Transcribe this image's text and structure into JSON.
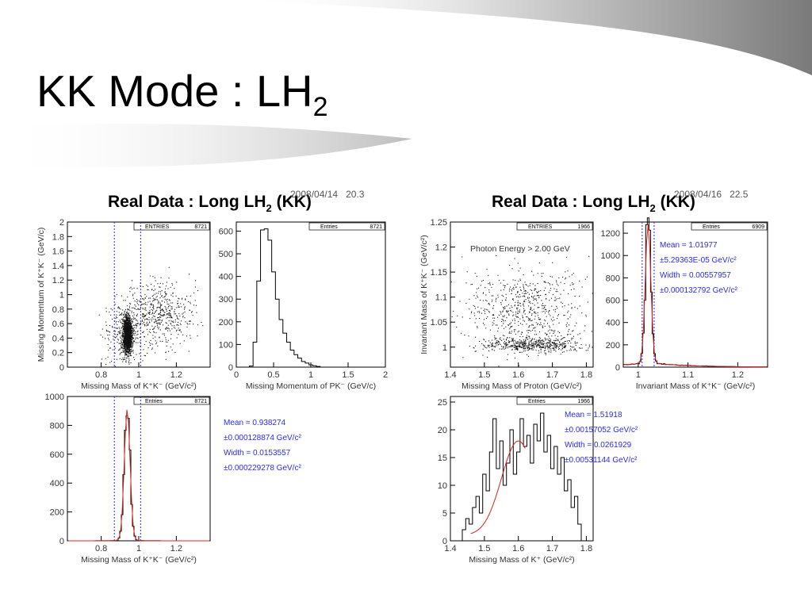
{
  "slide": {
    "title_main": "KK Mode : LH",
    "title_sub": "2"
  },
  "panels": [
    {
      "title_pre": "Real Data : Long LH",
      "title_sub": "2",
      "title_post": " (KK)",
      "stamp_date": "2008/04/14",
      "stamp_time": "20.3"
    },
    {
      "title_pre": "Real Data : Long LH",
      "title_sub": "2",
      "title_post": " (KK)",
      "stamp_date": "2008/04/16",
      "stamp_time": "22.5"
    }
  ],
  "colors": {
    "blue_line": "#2a2aff",
    "fit_red": "#e02020",
    "photon_red": "#e02020",
    "stat_blue": "#2a2aff"
  },
  "chart_data": [
    {
      "type": "scatter",
      "id": "p1",
      "xlabel": "Missing Mass of K⁺K⁻ (GeV/c²)",
      "ylabel": "Missing Momentum of K⁺K⁻ (GeV/c)",
      "xlim": [
        0.62,
        1.38
      ],
      "ylim": [
        0,
        2
      ],
      "xticks": [
        "0.8",
        "1",
        "1.2"
      ],
      "xtick_vals": [
        0.8,
        1.0,
        1.2
      ],
      "yticks": [
        "0",
        "0.2",
        "0.4",
        "0.6",
        "0.8",
        "1",
        "1.2",
        "1.4",
        "1.6",
        "1.8",
        "2"
      ],
      "ytick_vals": [
        0,
        0.2,
        0.4,
        0.6,
        0.8,
        1.0,
        1.2,
        1.4,
        1.6,
        1.8,
        2.0
      ],
      "box": {
        "label": "ENTRIES",
        "value": "8721"
      },
      "cut_lines_x": [
        0.87,
        1.01
      ],
      "clusters": [
        {
          "cx": 0.938,
          "cy": 0.45,
          "sx": 0.012,
          "sy": 0.12,
          "n": 1600
        },
        {
          "cx": 0.93,
          "cy": 0.5,
          "sx": 0.06,
          "sy": 0.2,
          "n": 300
        },
        {
          "cx": 1.12,
          "cy": 0.75,
          "sx": 0.09,
          "sy": 0.22,
          "n": 500
        }
      ]
    },
    {
      "type": "line",
      "id": "p2",
      "xlabel": "Missing Momentum of PK⁻ (GeV/c)",
      "xlim": [
        0,
        2
      ],
      "ylim": [
        0,
        640
      ],
      "xticks": [
        "0",
        "0.5",
        "1",
        "1.5",
        "2"
      ],
      "xtick_vals": [
        0,
        0.5,
        1,
        1.5,
        2
      ],
      "yticks": [
        "0",
        "100",
        "200",
        "300",
        "400",
        "500",
        "600"
      ],
      "ytick_vals": [
        0,
        100,
        200,
        300,
        400,
        500,
        600
      ],
      "box": {
        "label": "Entries",
        "value": "8721"
      },
      "x": [
        0.2,
        0.25,
        0.3,
        0.35,
        0.4,
        0.45,
        0.5,
        0.55,
        0.6,
        0.65,
        0.7,
        0.75,
        0.8,
        0.85,
        0.9,
        0.95,
        1.0,
        1.05,
        1.1
      ],
      "y": [
        5,
        110,
        380,
        605,
        610,
        560,
        420,
        300,
        210,
        150,
        110,
        75,
        55,
        40,
        25,
        18,
        10,
        6,
        3
      ]
    },
    {
      "type": "scatter",
      "id": "p3",
      "xlabel": "Missing Mass of Proton (GeV/c²)",
      "ylabel": "Invariant Mass of K⁺K⁻ (GeV/c²)",
      "xlim": [
        1.4,
        1.82
      ],
      "ylim": [
        0.96,
        1.25
      ],
      "xticks": [
        "1.4",
        "1.5",
        "1.6",
        "1.7",
        "1.8"
      ],
      "xtick_vals": [
        1.4,
        1.5,
        1.6,
        1.7,
        1.8
      ],
      "yticks": [
        "1",
        "1.05",
        "1.1",
        "1.15",
        "1.2",
        "1.25"
      ],
      "ytick_vals": [
        1.0,
        1.05,
        1.1,
        1.15,
        1.2,
        1.25
      ],
      "box": {
        "label": "ENTRIES",
        "value": "1966"
      },
      "annotation": "Photon Energy > 2.00 GeV",
      "clusters": [
        {
          "cx": 1.62,
          "cy": 1.075,
          "sx": 0.09,
          "sy": 0.04,
          "n": 700
        },
        {
          "cx": 1.64,
          "cy": 1.005,
          "sx": 0.07,
          "sy": 0.007,
          "n": 500
        }
      ]
    },
    {
      "type": "line",
      "id": "p4",
      "xlabel": "Invariant Mass of K⁺K⁻ (GeV/c²)",
      "xlim": [
        0.97,
        1.26
      ],
      "ylim": [
        0,
        1300
      ],
      "xticks": [
        "1",
        "1.1",
        "1.2"
      ],
      "xtick_vals": [
        1.0,
        1.1,
        1.2
      ],
      "yticks": [
        "0",
        "200",
        "400",
        "600",
        "800",
        "1000",
        "1200"
      ],
      "ytick_vals": [
        0,
        200,
        400,
        600,
        800,
        1000,
        1200
      ],
      "box": {
        "label": "Entries",
        "value": "6909"
      },
      "cut_lines_x": [
        1.008,
        1.032
      ],
      "stats": [
        "Mean = 1.01977",
        "±5.29363E-05 GeV/c²",
        "Width = 0.00557957",
        "±0.000132792 GeV/c²"
      ],
      "peak": {
        "mean": 1.01977,
        "width": 0.00557957,
        "height": 1240,
        "bg": 40
      }
    },
    {
      "type": "line",
      "id": "p5",
      "xlabel": "Missing Mass of K⁺K⁻ (GeV/c²)",
      "xlim": [
        0.62,
        1.38
      ],
      "ylim": [
        0,
        1000
      ],
      "xticks": [
        "0.8",
        "1",
        "1.2"
      ],
      "xtick_vals": [
        0.8,
        1.0,
        1.2
      ],
      "yticks": [
        "0",
        "200",
        "400",
        "600",
        "800",
        "1000"
      ],
      "ytick_vals": [
        0,
        200,
        400,
        600,
        800,
        1000
      ],
      "box": {
        "label": "Entries",
        "value": "8721"
      },
      "cut_lines_x": [
        0.87,
        1.01
      ],
      "stats": [
        "Mean = 0.938274",
        "±0.000128874 GeV/c²",
        "Width = 0.0153557",
        "±0.000229278 GeV/c²"
      ],
      "peak": {
        "mean": 0.938274,
        "width": 0.0153557,
        "height": 910,
        "bg": 3
      }
    },
    {
      "type": "line",
      "id": "p6",
      "xlabel": "Missing Mass of K⁺ (GeV/c²)",
      "xlim": [
        1.4,
        1.82
      ],
      "ylim": [
        0,
        26
      ],
      "xticks": [
        "1.4",
        "1.5",
        "1.6",
        "1.7",
        "1.8"
      ],
      "xtick_vals": [
        1.4,
        1.5,
        1.6,
        1.7,
        1.8
      ],
      "yticks": [
        "0",
        "5",
        "10",
        "15",
        "20",
        "25"
      ],
      "ytick_vals": [
        0,
        5,
        10,
        15,
        20,
        25
      ],
      "box": {
        "label": "Entries",
        "value": "1966"
      },
      "stats": [
        "Mean = 1.51918",
        "±0.00157052 GeV/c²",
        "Width = 0.0261929",
        "±0.00531144 GeV/c²"
      ],
      "x": [
        1.44,
        1.45,
        1.46,
        1.47,
        1.48,
        1.49,
        1.5,
        1.51,
        1.52,
        1.53,
        1.54,
        1.55,
        1.56,
        1.57,
        1.58,
        1.59,
        1.6,
        1.61,
        1.62,
        1.63,
        1.64,
        1.65,
        1.66,
        1.67,
        1.68,
        1.69,
        1.7,
        1.71,
        1.72,
        1.73,
        1.74,
        1.75,
        1.76,
        1.77,
        1.78
      ],
      "y": [
        2,
        4,
        3,
        6,
        8,
        5,
        12,
        9,
        16,
        22,
        13,
        18,
        10,
        14,
        20,
        12,
        16,
        22,
        17,
        19,
        14,
        21,
        18,
        23,
        16,
        19,
        13,
        17,
        12,
        15,
        9,
        11,
        6,
        8,
        3
      ]
    }
  ]
}
